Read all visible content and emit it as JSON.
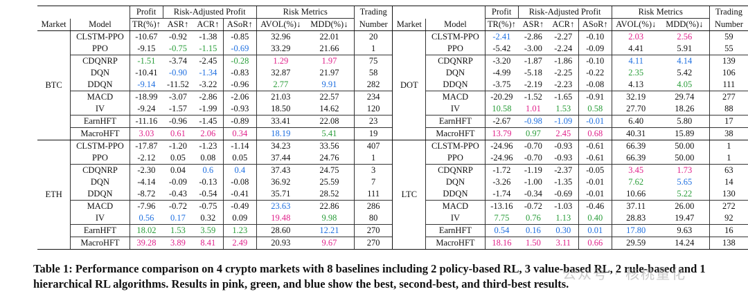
{
  "header": {
    "group_row": [
      "Profit",
      "Risk-Adjusted Profit",
      "Risk Metrics",
      "Trading"
    ],
    "col_row": [
      "Market",
      "Model",
      "TR(%)↑",
      "ASR↑",
      "ACR↑",
      "ASoR↑",
      "AVOL(%)↓",
      "MDD(%)↓",
      "Number"
    ]
  },
  "color_legend": {
    "pink": "#e0218a",
    "green": "#2a9d3a",
    "blue": "#1e6fe0"
  },
  "blocks": [
    {
      "left_market": "BTC",
      "right_market": "DOT",
      "groups": [
        2,
        3,
        2,
        1,
        1
      ],
      "rows": [
        {
          "l": [
            "CLSTM-PPO",
            "-10.67",
            "-0.92",
            "-1.38",
            "-0.85",
            "32.96",
            "22.01",
            "20"
          ],
          "lc": [
            "",
            "",
            "",
            "",
            "",
            "",
            "",
            ""
          ],
          "r": [
            "CLSTM-PPO",
            "-2.41",
            "-2.86",
            "-2.27",
            "-0.10",
            "2.03",
            "2.56",
            "59"
          ],
          "rc": [
            "",
            "blue",
            "",
            "",
            "",
            "pink",
            "pink",
            ""
          ]
        },
        {
          "l": [
            "PPO",
            "-9.15",
            "-0.75",
            "-1.15",
            "-0.69",
            "33.29",
            "21.66",
            "1"
          ],
          "lc": [
            "",
            "",
            "green",
            "green",
            "blue",
            "",
            "",
            ""
          ],
          "r": [
            "PPO",
            "-5.42",
            "-3.00",
            "-2.24",
            "-0.09",
            "4.41",
            "5.91",
            "55"
          ],
          "rc": [
            "",
            "",
            "",
            "",
            "",
            "",
            "",
            ""
          ]
        },
        {
          "l": [
            "CDQNRP",
            "-1.51",
            "-3.74",
            "-2.45",
            "-0.28",
            "1.29",
            "1.97",
            "75"
          ],
          "lc": [
            "",
            "green",
            "",
            "",
            "green",
            "pink",
            "pink",
            ""
          ],
          "r": [
            "CDQNRP",
            "-3.20",
            "-1.87",
            "-1.86",
            "-0.10",
            "4.11",
            "4.14",
            "139"
          ],
          "rc": [
            "",
            "",
            "",
            "",
            "",
            "blue",
            "blue",
            ""
          ]
        },
        {
          "l": [
            "DQN",
            "-10.41",
            "-0.90",
            "-1.34",
            "-0.83",
            "32.87",
            "21.97",
            "58"
          ],
          "lc": [
            "",
            "",
            "blue",
            "blue",
            "",
            "",
            "",
            ""
          ],
          "r": [
            "DQN",
            "-4.99",
            "-5.18",
            "-2.25",
            "-0.22",
            "2.35",
            "5.42",
            "106"
          ],
          "rc": [
            "",
            "",
            "",
            "",
            "",
            "green",
            "",
            ""
          ]
        },
        {
          "l": [
            "DDQN",
            "-9.14",
            "-11.52",
            "-3.22",
            "-0.96",
            "2.77",
            "9.91",
            "282"
          ],
          "lc": [
            "",
            "blue",
            "",
            "",
            "",
            "green",
            "blue",
            ""
          ],
          "r": [
            "DDQN",
            "-3.75",
            "-2.19",
            "-2.23",
            "-0.08",
            "4.13",
            "4.05",
            "111"
          ],
          "rc": [
            "",
            "",
            "",
            "",
            "",
            "",
            "green",
            ""
          ]
        },
        {
          "l": [
            "MACD",
            "-18.99",
            "-3.07",
            "-2.86",
            "-2.06",
            "21.03",
            "22.57",
            "234"
          ],
          "lc": [
            "",
            "",
            "",
            "",
            "",
            "",
            "",
            ""
          ],
          "r": [
            "MACD",
            "-20.29",
            "-1.52",
            "-1.65",
            "-0.91",
            "32.19",
            "29.74",
            "277"
          ],
          "rc": [
            "",
            "",
            "",
            "",
            "",
            "",
            "",
            ""
          ]
        },
        {
          "l": [
            "IV",
            "-9.24",
            "-1.57",
            "-1.99",
            "-0.93",
            "18.50",
            "14.62",
            "120"
          ],
          "lc": [
            "",
            "",
            "",
            "",
            "",
            "",
            "",
            ""
          ],
          "r": [
            "IV",
            "10.58",
            "1.01",
            "1.53",
            "0.58",
            "27.70",
            "18.26",
            "88"
          ],
          "rc": [
            "",
            "green",
            "pink",
            "green",
            "green",
            "",
            "",
            ""
          ]
        },
        {
          "l": [
            "EarnHFT",
            "-11.16",
            "-0.96",
            "-1.45",
            "-0.89",
            "33.41",
            "22.08",
            "23"
          ],
          "lc": [
            "",
            "",
            "",
            "",
            "",
            "",
            "",
            ""
          ],
          "r": [
            "EarnHFT",
            "-2.67",
            "-0.98",
            "-1.09",
            "-0.01",
            "6.40",
            "5.80",
            "17"
          ],
          "rc": [
            "",
            "",
            "blue",
            "blue",
            "blue",
            "",
            "",
            ""
          ]
        },
        {
          "l": [
            "MacroHFT",
            "3.03",
            "0.61",
            "2.06",
            "0.34",
            "18.19",
            "5.41",
            "19"
          ],
          "lc": [
            "",
            "pink",
            "pink",
            "pink",
            "pink",
            "blue",
            "green",
            ""
          ],
          "r": [
            "MacroHFT",
            "13.79",
            "0.97",
            "2.45",
            "0.68",
            "40.31",
            "15.89",
            "38"
          ],
          "rc": [
            "",
            "pink",
            "green",
            "pink",
            "pink",
            "",
            "",
            ""
          ]
        }
      ]
    },
    {
      "left_market": "ETH",
      "right_market": "LTC",
      "groups": [
        2,
        3,
        2,
        1,
        1
      ],
      "rows": [
        {
          "l": [
            "CLSTM-PPO",
            "-17.87",
            "-1.20",
            "-1.23",
            "-1.14",
            "34.23",
            "33.56",
            "407"
          ],
          "lc": [
            "",
            "",
            "",
            "",
            "",
            "",
            "",
            ""
          ],
          "r": [
            "CLSTM-PPO",
            "-24.96",
            "-0.70",
            "-0.93",
            "-0.61",
            "66.39",
            "50.00",
            "1"
          ],
          "rc": [
            "",
            "",
            "",
            "",
            "",
            "",
            "",
            ""
          ]
        },
        {
          "l": [
            "PPO",
            "-2.12",
            "0.05",
            "0.08",
            "0.05",
            "37.44",
            "24.76",
            "1"
          ],
          "lc": [
            "",
            "",
            "",
            "",
            "",
            "",
            "",
            ""
          ],
          "r": [
            "PPO",
            "-24.96",
            "-0.70",
            "-0.93",
            "-0.61",
            "66.39",
            "50.00",
            "1"
          ],
          "rc": [
            "",
            "",
            "",
            "",
            "",
            "",
            "",
            ""
          ]
        },
        {
          "l": [
            "CDQNRP",
            "-2.30",
            "0.04",
            "0.6",
            "0.4",
            "37.43",
            "24.75",
            "3"
          ],
          "lc": [
            "",
            "",
            "",
            "blue",
            "blue",
            "",
            "",
            ""
          ],
          "r": [
            "CDQNRP",
            "-1.72",
            "-1.19",
            "-2.37",
            "-0.05",
            "3.45",
            "1.73",
            "63"
          ],
          "rc": [
            "",
            "",
            "",
            "",
            "",
            "pink",
            "pink",
            ""
          ]
        },
        {
          "l": [
            "DQN",
            "-4.14",
            "-0.09",
            "-0.13",
            "-0.08",
            "36.92",
            "25.59",
            "7"
          ],
          "lc": [
            "",
            "",
            "",
            "",
            "",
            "",
            "",
            ""
          ],
          "r": [
            "DQN",
            "-3.26",
            "-1.00",
            "-1.35",
            "-0.01",
            "7.62",
            "5.65",
            "14"
          ],
          "rc": [
            "",
            "",
            "",
            "",
            "",
            "green",
            "blue",
            ""
          ]
        },
        {
          "l": [
            "DDQN",
            "-8.72",
            "-0.43",
            "-0.54",
            "-0.41",
            "35.71",
            "28.52",
            "111"
          ],
          "lc": [
            "",
            "",
            "",
            "",
            "",
            "",
            "",
            ""
          ],
          "r": [
            "DDQN",
            "-1.74",
            "-0.34",
            "-0.69",
            "-0.01",
            "10.66",
            "5.22",
            "130"
          ],
          "rc": [
            "",
            "",
            "",
            "",
            "",
            "",
            "green",
            ""
          ]
        },
        {
          "l": [
            "MACD",
            "-7.96",
            "-0.72",
            "-0.75",
            "-0.49",
            "23.63",
            "22.86",
            "286"
          ],
          "lc": [
            "",
            "",
            "",
            "",
            "",
            "blue",
            "",
            ""
          ],
          "r": [
            "MACD",
            "-13.16",
            "-0.72",
            "-1.03",
            "-0.46",
            "37.11",
            "26.00",
            "272"
          ],
          "rc": [
            "",
            "",
            "",
            "",
            "",
            "",
            "",
            ""
          ]
        },
        {
          "l": [
            "IV",
            "0.56",
            "0.17",
            "0.32",
            "0.09",
            "19.48",
            "9.98",
            "80"
          ],
          "lc": [
            "",
            "blue",
            "blue",
            "",
            "",
            "pink",
            "green",
            ""
          ],
          "r": [
            "IV",
            "7.75",
            "0.76",
            "1.13",
            "0.40",
            "28.83",
            "19.47",
            "92"
          ],
          "rc": [
            "",
            "green",
            "green",
            "green",
            "green",
            "",
            "",
            ""
          ]
        },
        {
          "l": [
            "EarnHFT",
            "18.02",
            "1.53",
            "3.59",
            "1.23",
            "28.60",
            "12.21",
            "270"
          ],
          "lc": [
            "",
            "green",
            "green",
            "green",
            "green",
            "",
            "blue",
            ""
          ],
          "r": [
            "EarnHFT",
            "0.54",
            "0.16",
            "0.30",
            "0.01",
            "17.80",
            "9.63",
            "16"
          ],
          "rc": [
            "",
            "blue",
            "blue",
            "blue",
            "blue",
            "blue",
            "",
            ""
          ]
        },
        {
          "l": [
            "MacroHFT",
            "39.28",
            "3.89",
            "8.41",
            "2.49",
            "20.93",
            "9.67",
            "270"
          ],
          "lc": [
            "",
            "pink",
            "pink",
            "pink",
            "pink",
            "",
            "pink",
            ""
          ],
          "r": [
            "MacroHFT",
            "18.16",
            "1.50",
            "3.11",
            "0.66",
            "29.59",
            "14.24",
            "138"
          ],
          "rc": [
            "",
            "pink",
            "pink",
            "pink",
            "pink",
            "",
            "",
            ""
          ]
        }
      ]
    }
  ],
  "caption": "Table 1: Performance comparison on 4 crypto markets with 8 baselines including 2 policy-based RL, 3 value-based RL, 2 rule-based and 1 hierarchical RL algorithms. Results in pink, green, and blue show the best, second-best, and third-best results.",
  "watermark": "公众号 · 核桃量化"
}
